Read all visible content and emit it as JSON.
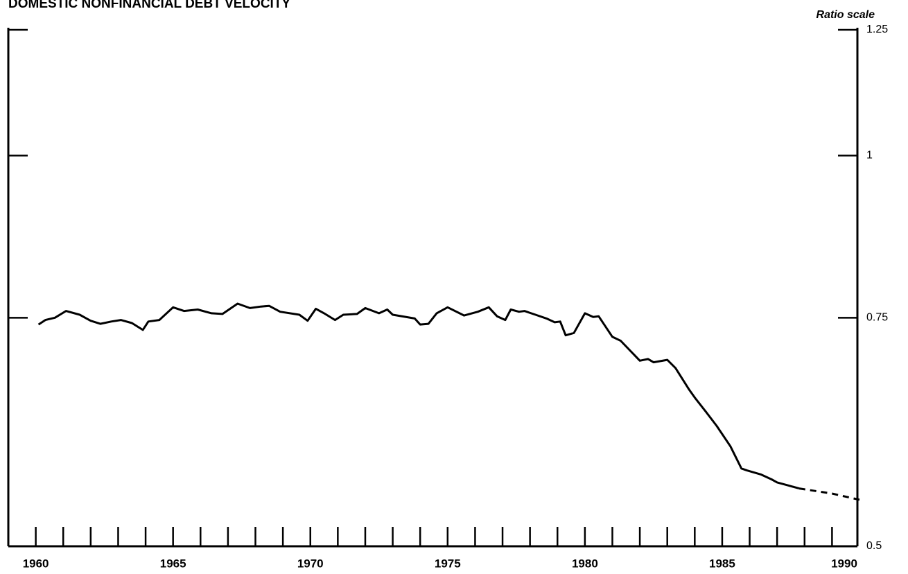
{
  "chart_data": {
    "type": "line",
    "title": "DOMESTIC NONFINANCIAL DEBT VELOCITY",
    "y_axis_label": "Ratio scale",
    "log_scale": true,
    "xlim": [
      1959,
      1990
    ],
    "xticks": [
      1960,
      1965,
      1970,
      1975,
      1980,
      1985,
      1990
    ],
    "xminor": [
      1960,
      1961,
      1962,
      1963,
      1964,
      1965,
      1966,
      1967,
      1968,
      1969,
      1970,
      1971,
      1972,
      1973,
      1974,
      1975,
      1976,
      1977,
      1978,
      1979,
      1980,
      1981,
      1982,
      1983,
      1984,
      1985,
      1986,
      1987,
      1988,
      1989
    ],
    "ylim": [
      0.5,
      1.25
    ],
    "yticks": [
      0.5,
      0.75,
      1,
      1.25
    ],
    "series": [
      {
        "color": "#000000",
        "dash": false,
        "x": [
          1960.1,
          1960.35,
          1960.7,
          1961.1,
          1961.6,
          1962.0,
          1962.35,
          1962.75,
          1963.1,
          1963.5,
          1963.9,
          1964.1,
          1964.5,
          1965.0,
          1965.4,
          1965.9,
          1966.4,
          1966.8,
          1967.35,
          1967.8,
          1968.2,
          1968.5,
          1968.9,
          1969.6,
          1969.9,
          1970.2,
          1970.5,
          1970.9,
          1971.2,
          1971.7,
          1972.0,
          1972.5,
          1972.8,
          1973.0,
          1973.8,
          1974.0,
          1974.3,
          1974.6,
          1975.0,
          1975.6,
          1976.1,
          1976.5,
          1976.8,
          1977.1,
          1977.3,
          1977.6,
          1977.8,
          1978.2,
          1978.6,
          1978.9,
          1979.1,
          1979.3,
          1979.6,
          1980.0,
          1980.3,
          1980.5,
          1981.0,
          1981.3,
          1981.8,
          1982.0,
          1982.3,
          1982.5,
          1983.0,
          1983.3,
          1983.8,
          1984.0,
          1984.4,
          1984.8,
          1985.3,
          1985.7,
          1985.9,
          1986.4,
          1986.8,
          1987.0,
          1987.4,
          1987.8
        ],
        "values": [
          0.741,
          0.747,
          0.75,
          0.759,
          0.754,
          0.746,
          0.742,
          0.745,
          0.747,
          0.743,
          0.734,
          0.745,
          0.747,
          0.764,
          0.759,
          0.761,
          0.756,
          0.755,
          0.769,
          0.763,
          0.765,
          0.766,
          0.758,
          0.754,
          0.746,
          0.762,
          0.756,
          0.747,
          0.754,
          0.755,
          0.763,
          0.756,
          0.761,
          0.754,
          0.749,
          0.741,
          0.742,
          0.756,
          0.764,
          0.753,
          0.758,
          0.764,
          0.752,
          0.747,
          0.761,
          0.758,
          0.759,
          0.754,
          0.749,
          0.744,
          0.745,
          0.727,
          0.73,
          0.756,
          0.751,
          0.752,
          0.725,
          0.72,
          0.702,
          0.695,
          0.697,
          0.693,
          0.696,
          0.686,
          0.66,
          0.651,
          0.635,
          0.619,
          0.597,
          0.574,
          0.572,
          0.568,
          0.563,
          0.56,
          0.557,
          0.554
        ]
      },
      {
        "color": "#000000",
        "dash": true,
        "x": [
          1987.8,
          1989,
          1990
        ],
        "values": [
          0.554,
          0.549,
          0.543
        ]
      }
    ]
  }
}
